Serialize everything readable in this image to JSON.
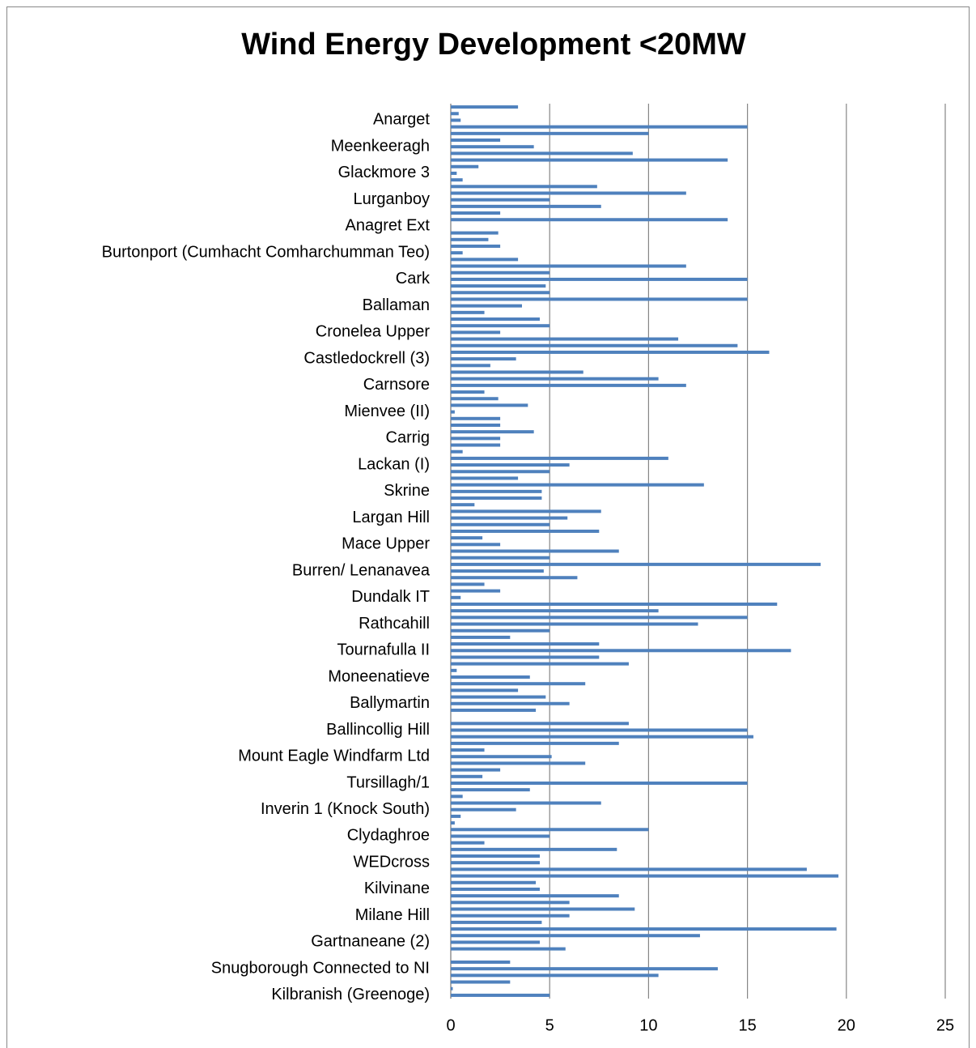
{
  "chart_data": {
    "type": "barh",
    "title": "Wind Energy Development <20MW",
    "categories": [
      null,
      null,
      "Anarget",
      null,
      null,
      null,
      "Meenkeeragh",
      null,
      null,
      null,
      "Glackmore 3",
      null,
      null,
      null,
      "Lurganboy",
      null,
      null,
      null,
      "Anagret Ext",
      null,
      null,
      null,
      "Burtonport (Cumhacht Comharchumman Teo)",
      null,
      null,
      null,
      "Cark",
      null,
      null,
      null,
      "Ballaman",
      null,
      null,
      null,
      "Cronelea Upper",
      null,
      null,
      null,
      "Castledockrell (3)",
      null,
      null,
      null,
      "Carnsore",
      null,
      null,
      null,
      "Mienvee (II)",
      null,
      null,
      null,
      "Carrig",
      null,
      null,
      null,
      "Lackan (I)",
      null,
      null,
      null,
      "Skrine",
      null,
      null,
      null,
      "Largan Hill",
      null,
      null,
      null,
      "Mace Upper",
      null,
      null,
      null,
      "Burren/ Lenanavea",
      null,
      null,
      null,
      "Dundalk IT",
      null,
      null,
      null,
      "Rathcahill",
      null,
      null,
      null,
      "Tournafulla II",
      null,
      null,
      null,
      "Moneenatieve",
      null,
      null,
      null,
      "Ballymartin",
      null,
      null,
      null,
      "Ballincollig Hill",
      null,
      null,
      null,
      "Mount Eagle Windfarm Ltd",
      null,
      null,
      null,
      "Tursillagh/1",
      null,
      null,
      null,
      "Inverin 1 (Knock South)",
      null,
      null,
      null,
      "Clydaghroe",
      null,
      null,
      null,
      "WEDcross",
      null,
      null,
      null,
      "Kilvinane",
      null,
      null,
      null,
      "Milane Hill",
      null,
      null,
      null,
      "Gartnaneane (2)",
      null,
      null,
      null,
      "Snugborough Connected to NI",
      null,
      null,
      null,
      "Kilbranish (Greenoge)"
    ],
    "values": [
      3.4,
      0.4,
      0.5,
      15,
      10,
      2.5,
      4.2,
      9.2,
      14,
      1.4,
      0.3,
      0.6,
      7.4,
      11.9,
      5,
      7.6,
      2.5,
      14,
      0,
      2.4,
      1.9,
      2.5,
      0.6,
      3.4,
      11.9,
      5,
      15,
      4.8,
      5,
      15,
      3.6,
      1.7,
      4.5,
      5,
      2.5,
      11.5,
      14.5,
      16.1,
      3.3,
      2,
      6.7,
      10.5,
      11.9,
      1.7,
      2.4,
      3.9,
      0.2,
      2.5,
      2.5,
      4.2,
      2.5,
      2.5,
      0.6,
      11,
      6,
      5,
      3.4,
      12.8,
      4.6,
      4.6,
      1.2,
      7.6,
      5.9,
      5,
      7.5,
      1.6,
      2.5,
      8.5,
      5,
      18.7,
      4.7,
      6.4,
      1.7,
      2.5,
      0.5,
      16.5,
      10.5,
      15,
      12.5,
      5,
      3,
      7.5,
      17.2,
      7.5,
      9,
      0.3,
      4,
      6.8,
      3.4,
      4.8,
      6,
      4.3,
      0,
      9,
      15,
      15.3,
      8.5,
      1.7,
      5.1,
      6.8,
      2.5,
      1.6,
      15,
      4,
      0.6,
      7.6,
      3.3,
      0.5,
      0.2,
      10,
      5,
      1.7,
      8.4,
      4.5,
      4.5,
      18,
      19.6,
      4.3,
      4.5,
      8.5,
      6,
      9.3,
      6,
      4.6,
      19.5,
      12.6,
      4.5,
      5.8,
      0,
      3,
      13.5,
      10.5,
      3,
      0.1,
      5
    ],
    "color": "#4f81bd",
    "xlim": [
      0,
      25
    ],
    "xticks": [
      0,
      5,
      10,
      15,
      20,
      25
    ],
    "grid": true
  }
}
